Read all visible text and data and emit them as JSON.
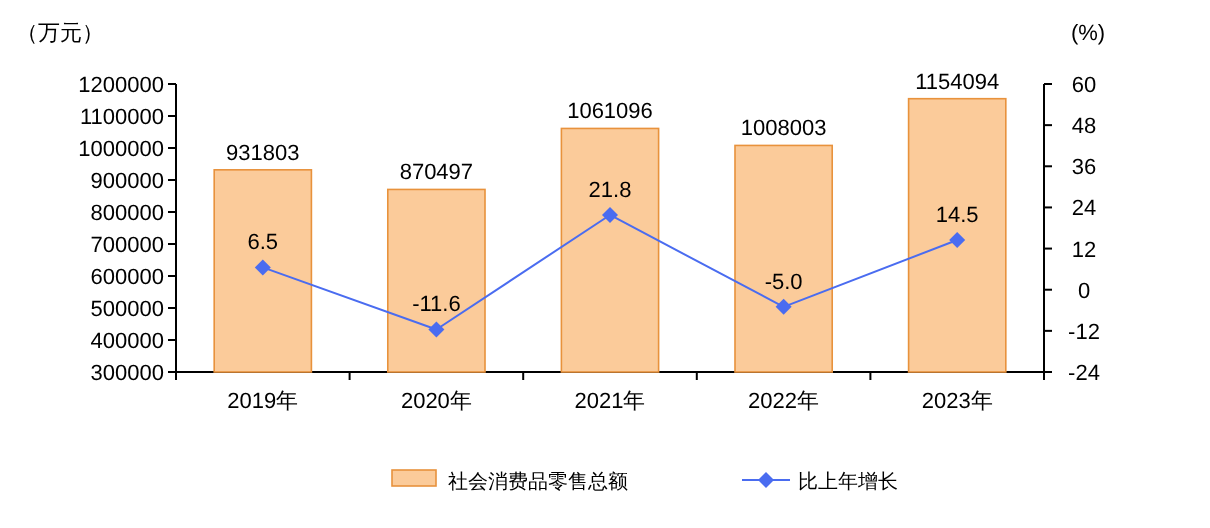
{
  "chart_data": {
    "type": "bar",
    "ylabel": "（万元）",
    "y2label": "(%)",
    "categories": [
      "2019年",
      "2020年",
      "2021年",
      "2022年",
      "2023年"
    ],
    "series": [
      {
        "name": "社会消费品零售总额",
        "color": "#fbcb9a",
        "values": [
          931803,
          870497,
          1061096,
          1008003,
          1154094
        ],
        "value_labels": [
          "931803",
          "870497",
          "1061096",
          "1008003",
          "1154094"
        ]
      },
      {
        "name": "比上年增长",
        "type": "line",
        "axis": "y2",
        "color": "#4a6cf0",
        "values": [
          6.5,
          -11.6,
          21.8,
          -5.0,
          14.5
        ],
        "value_labels": [
          "6.5",
          "-11.6",
          "21.8",
          "-5.0",
          "14.5"
        ]
      }
    ],
    "ylim": [
      300000,
      1200000
    ],
    "yticks": [
      300000,
      400000,
      500000,
      600000,
      700000,
      800000,
      900000,
      1000000,
      1100000,
      1200000
    ],
    "y2lim": [
      -24,
      60
    ],
    "y2ticks": [
      -24,
      -12,
      0,
      12,
      24,
      36,
      48,
      60
    ],
    "marker": "diamond",
    "legend": "bottom"
  }
}
